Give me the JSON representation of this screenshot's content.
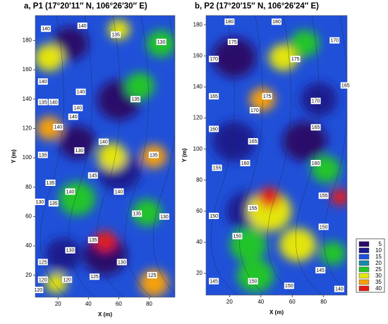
{
  "chart_data": [
    {
      "type": "contour",
      "title": "a, P1 (17°20′11″ N, 106°26′30″ E)",
      "x_label": "X (m)",
      "y_label": "Y (m)",
      "xlim": [
        5,
        97
      ],
      "ylim": [
        5,
        197
      ],
      "xticks": [
        20,
        40,
        60,
        80
      ],
      "yticks": [
        20,
        40,
        60,
        80,
        100,
        120,
        140,
        160,
        180
      ],
      "contour_labels": [
        {
          "x": 12,
          "y": 188,
          "value": 140
        },
        {
          "x": 36,
          "y": 190,
          "value": 140
        },
        {
          "x": 58,
          "y": 184,
          "value": 135
        },
        {
          "x": 88,
          "y": 179,
          "value": 130
        },
        {
          "x": 10,
          "y": 152,
          "value": 140
        },
        {
          "x": 35,
          "y": 145,
          "value": 140
        },
        {
          "x": 10,
          "y": 138,
          "value": 135
        },
        {
          "x": 17,
          "y": 138,
          "value": 140
        },
        {
          "x": 71,
          "y": 140,
          "value": 135
        },
        {
          "x": 33,
          "y": 134,
          "value": 140
        },
        {
          "x": 30,
          "y": 128,
          "value": 140
        },
        {
          "x": 20,
          "y": 121,
          "value": 140
        },
        {
          "x": 34,
          "y": 105,
          "value": 130
        },
        {
          "x": 50,
          "y": 111,
          "value": 140
        },
        {
          "x": 10,
          "y": 102,
          "value": 135
        },
        {
          "x": 83,
          "y": 102,
          "value": 135
        },
        {
          "x": 15,
          "y": 83,
          "value": 135
        },
        {
          "x": 43,
          "y": 88,
          "value": 145
        },
        {
          "x": 28,
          "y": 77,
          "value": 140
        },
        {
          "x": 60,
          "y": 77,
          "value": 140
        },
        {
          "x": 8,
          "y": 70,
          "value": 130
        },
        {
          "x": 17,
          "y": 69,
          "value": 135
        },
        {
          "x": 72,
          "y": 62,
          "value": 135
        },
        {
          "x": 90,
          "y": 60,
          "value": 130
        },
        {
          "x": 43,
          "y": 44,
          "value": 135
        },
        {
          "x": 28,
          "y": 37,
          "value": 130
        },
        {
          "x": 62,
          "y": 29,
          "value": 130
        },
        {
          "x": 10,
          "y": 29,
          "value": 125
        },
        {
          "x": 10,
          "y": 17,
          "value": 120
        },
        {
          "x": 26,
          "y": 17,
          "value": 120
        },
        {
          "x": 44,
          "y": 19,
          "value": 125
        },
        {
          "x": 82,
          "y": 20,
          "value": 125
        },
        {
          "x": 7,
          "y": 10,
          "value": 120
        }
      ]
    },
    {
      "type": "contour",
      "title": "b, P2 (17°20′15″ N, 106°26′24″ E)",
      "x_label": "X (m)",
      "y_label": "Y (m)",
      "xlim": [
        5,
        95
      ],
      "ylim": [
        6,
        186
      ],
      "xticks": [
        20,
        40,
        60,
        80
      ],
      "yticks": [
        20,
        40,
        60,
        80,
        100,
        120,
        140,
        160,
        180
      ],
      "contour_labels": [
        {
          "x": 20,
          "y": 182,
          "value": 180
        },
        {
          "x": 50,
          "y": 182,
          "value": 180
        },
        {
          "x": 22,
          "y": 169,
          "value": 175
        },
        {
          "x": 62,
          "y": 158,
          "value": 175
        },
        {
          "x": 10,
          "y": 158,
          "value": 170
        },
        {
          "x": 87,
          "y": 170,
          "value": 170
        },
        {
          "x": 94,
          "y": 141,
          "value": 165
        },
        {
          "x": 44,
          "y": 134,
          "value": 175
        },
        {
          "x": 10,
          "y": 134,
          "value": 165
        },
        {
          "x": 36,
          "y": 125,
          "value": 170
        },
        {
          "x": 75,
          "y": 131,
          "value": 170
        },
        {
          "x": 10,
          "y": 113,
          "value": 160
        },
        {
          "x": 35,
          "y": 105,
          "value": 165
        },
        {
          "x": 75,
          "y": 114,
          "value": 165
        },
        {
          "x": 12,
          "y": 88,
          "value": 155
        },
        {
          "x": 30,
          "y": 91,
          "value": 160
        },
        {
          "x": 75,
          "y": 91,
          "value": 160
        },
        {
          "x": 80,
          "y": 70,
          "value": 155
        },
        {
          "x": 35,
          "y": 62,
          "value": 155
        },
        {
          "x": 10,
          "y": 57,
          "value": 150
        },
        {
          "x": 80,
          "y": 50,
          "value": 150
        },
        {
          "x": 25,
          "y": 44,
          "value": 150
        },
        {
          "x": 78,
          "y": 22,
          "value": 145
        },
        {
          "x": 10,
          "y": 15,
          "value": 145
        },
        {
          "x": 35,
          "y": 15,
          "value": 150
        },
        {
          "x": 58,
          "y": 12,
          "value": 150
        },
        {
          "x": 90,
          "y": 10,
          "value": 140
        }
      ]
    }
  ],
  "legend": {
    "levels": [
      5,
      10,
      15,
      20,
      25,
      30,
      35,
      40
    ],
    "colors": [
      "#2b0a6a",
      "#1c1a8e",
      "#2050d8",
      "#168aa6",
      "#22c42a",
      "#e4e410",
      "#f5a010",
      "#e41a12"
    ]
  }
}
